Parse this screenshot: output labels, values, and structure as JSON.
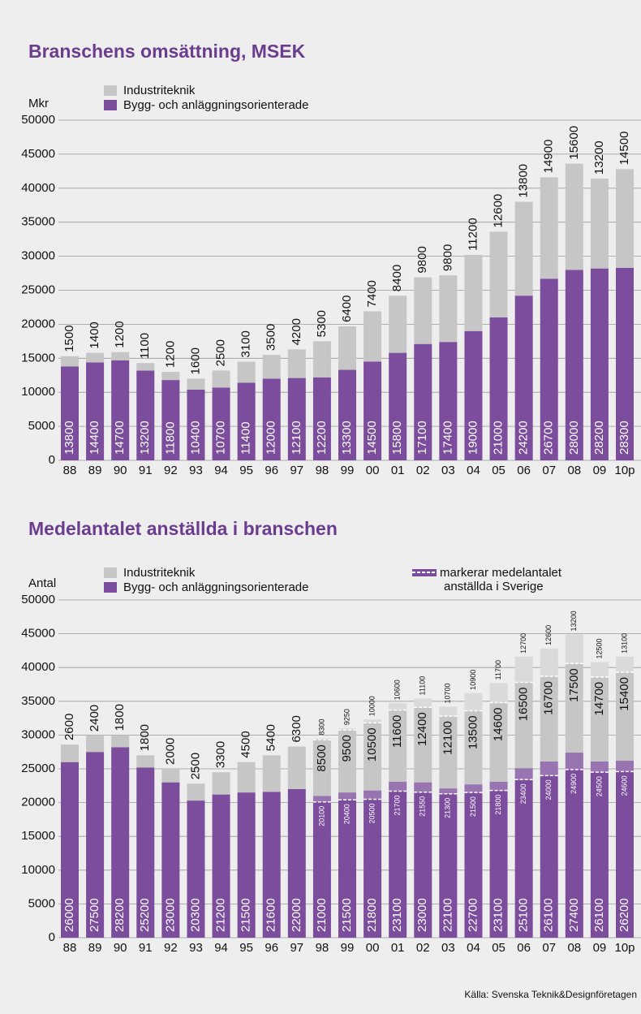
{
  "chart_data": [
    {
      "type": "bar",
      "stacked": true,
      "title": "Branschens omsättning, MSEK",
      "ylabel": "Mkr",
      "categories": [
        "88",
        "89",
        "90",
        "91",
        "92",
        "93",
        "94",
        "95",
        "96",
        "97",
        "98",
        "99",
        "00",
        "01",
        "02",
        "03",
        "04",
        "05",
        "06",
        "07",
        "08",
        "09",
        "10p"
      ],
      "series": [
        {
          "name": "Bygg- och anläggningsorienterade",
          "color": "#7b4d9c",
          "values": [
            13800,
            14400,
            14700,
            13200,
            11800,
            10400,
            10700,
            11400,
            12000,
            12100,
            12200,
            13300,
            14500,
            15800,
            17100,
            17400,
            19000,
            21000,
            24200,
            26700,
            28000,
            28200,
            28300
          ]
        },
        {
          "name": "Industriteknik",
          "color": "#c6c6c6",
          "values": [
            1500,
            1400,
            1200,
            1100,
            1200,
            1600,
            2500,
            3100,
            3500,
            4200,
            5300,
            6400,
            7400,
            8400,
            9800,
            9800,
            11200,
            12600,
            13800,
            14900,
            15600,
            13200,
            14500
          ]
        }
      ],
      "ylim": [
        0,
        50000
      ],
      "yticks": [
        0,
        5000,
        10000,
        15000,
        20000,
        25000,
        30000,
        35000,
        40000,
        45000,
        50000
      ],
      "grid": true
    },
    {
      "type": "bar",
      "stacked": true,
      "title": "Medelantalet anställda i branschen",
      "ylabel": "Antal",
      "categories": [
        "88",
        "89",
        "90",
        "91",
        "92",
        "93",
        "94",
        "95",
        "96",
        "97",
        "98",
        "99",
        "00",
        "01",
        "02",
        "03",
        "04",
        "05",
        "06",
        "07",
        "08",
        "09",
        "10p"
      ],
      "series": [
        {
          "name": "Bygg- och anläggningsorienterade",
          "color": "#7b4d9c",
          "values": [
            26000,
            27500,
            28200,
            25200,
            23000,
            20300,
            21200,
            21500,
            21600,
            22000,
            21000,
            21500,
            21800,
            23100,
            23000,
            22100,
            22700,
            23100,
            25100,
            26100,
            27400,
            26100,
            26200
          ]
        },
        {
          "name": "Industriteknik",
          "color": "#c6c6c6",
          "values": [
            2600,
            2400,
            1800,
            1800,
            2000,
            2500,
            3300,
            4500,
            5400,
            6300,
            8500,
            9500,
            10500,
            11600,
            12400,
            12100,
            13500,
            14600,
            16500,
            16700,
            17500,
            14700,
            15400
          ]
        }
      ],
      "markers": {
        "name": "markerar medelantalet anställda i Sverige",
        "bygg_values": [
          null,
          null,
          null,
          null,
          null,
          null,
          null,
          null,
          null,
          null,
          20100,
          20400,
          20500,
          21700,
          21550,
          21300,
          21500,
          21800,
          23400,
          24000,
          24900,
          24500,
          24600
        ],
        "industri_values": [
          null,
          null,
          null,
          null,
          null,
          null,
          null,
          null,
          null,
          null,
          8300,
          9250,
          10000,
          10600,
          11100,
          10700,
          10900,
          11700,
          12700,
          12600,
          13200,
          12500,
          13100
        ]
      },
      "ylim": [
        0,
        50000
      ],
      "yticks": [
        0,
        5000,
        10000,
        15000,
        20000,
        25000,
        30000,
        35000,
        40000,
        45000,
        50000
      ],
      "grid": true
    }
  ],
  "source": "Källa: Svenska Teknik&Designföretagen"
}
